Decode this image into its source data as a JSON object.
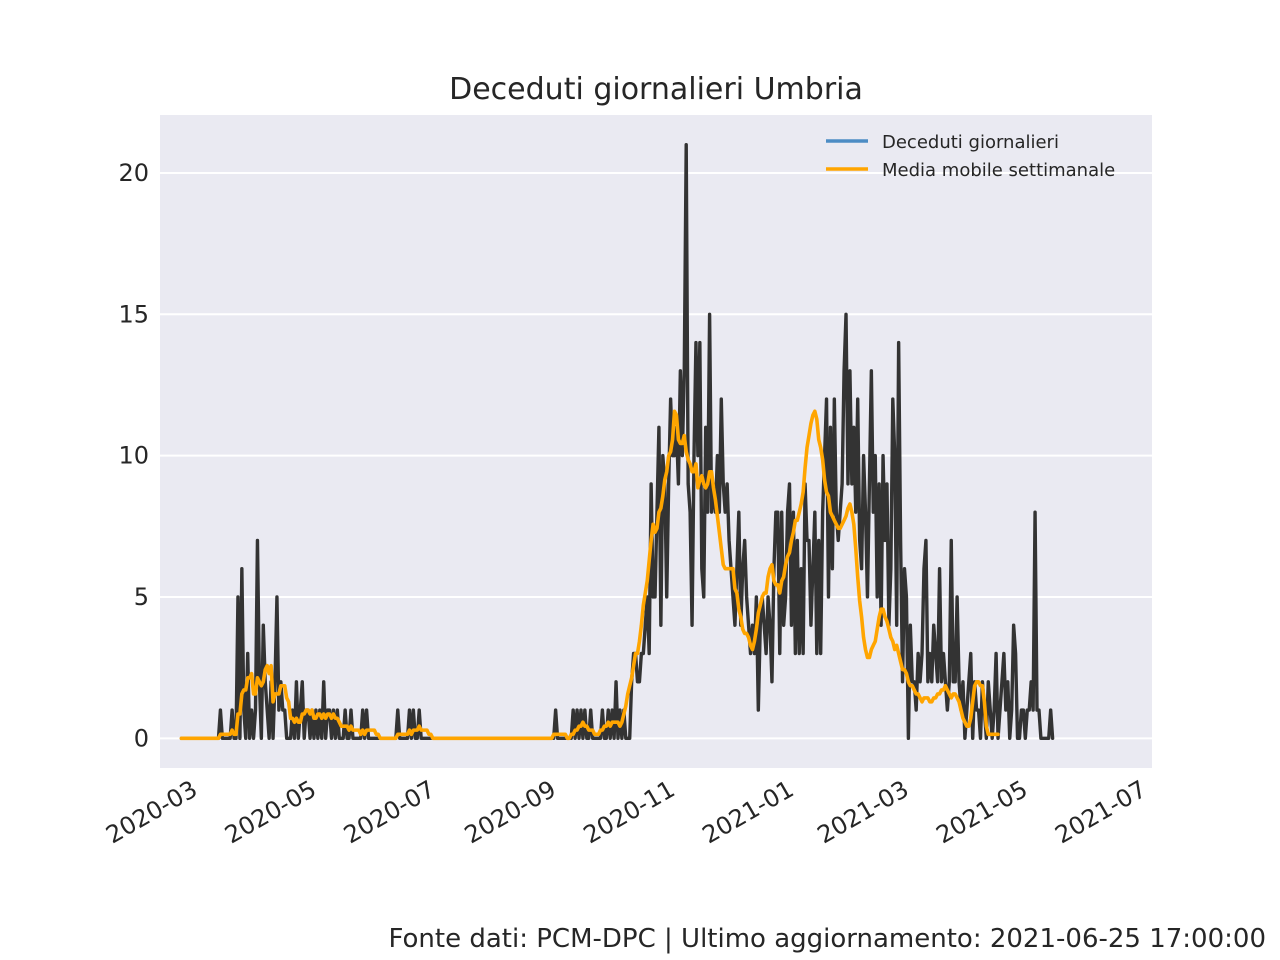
{
  "chart_data": {
    "type": "line",
    "title": "Deceduti giornalieri Umbria",
    "xlabel": "",
    "ylabel": "",
    "x_range": [
      "2020-02-24",
      "2021-06-25"
    ],
    "xlim": [
      "2020-02-13",
      "2021-07-06"
    ],
    "ylim": [
      -1.05,
      22.05
    ],
    "y_ticks": [
      0,
      5,
      10,
      15,
      20
    ],
    "x_ticks": [
      "2020-03",
      "2020-05",
      "2020-07",
      "2020-09",
      "2020-11",
      "2021-01",
      "2021-03",
      "2021-05",
      "2021-07"
    ],
    "grid": true,
    "legend_position": "top-right",
    "series": [
      {
        "name": "Deceduti giornalieri",
        "legend_color": "#4c8cc4",
        "line_color": "#333333",
        "values": [
          0,
          0,
          0,
          0,
          0,
          0,
          0,
          0,
          0,
          0,
          0,
          0,
          0,
          0,
          0,
          0,
          0,
          0,
          0,
          0,
          1,
          0,
          0,
          0,
          0,
          0,
          1,
          0,
          0,
          5,
          0,
          6,
          1,
          0,
          3,
          0,
          1,
          0,
          1,
          7,
          2,
          0,
          4,
          2,
          1,
          0,
          2,
          0,
          2,
          5,
          1,
          2,
          1,
          1,
          0,
          0,
          0,
          1,
          0,
          2,
          0,
          1,
          2,
          0,
          1,
          1,
          0,
          1,
          0,
          1,
          0,
          1,
          0,
          2,
          0,
          1,
          1,
          0,
          1,
          0,
          1,
          0,
          0,
          0,
          1,
          0,
          0,
          1,
          0,
          0,
          0,
          0,
          0,
          1,
          0,
          1,
          0,
          0,
          0,
          0,
          0,
          0,
          0,
          0,
          0,
          0,
          0,
          0,
          0,
          0,
          0,
          1,
          0,
          0,
          0,
          0,
          0,
          1,
          0,
          1,
          0,
          0,
          1,
          0,
          0,
          0,
          0,
          0,
          0,
          0,
          0,
          0,
          0,
          0,
          0,
          0,
          0,
          0,
          0,
          0,
          0,
          0,
          0,
          0,
          0,
          0,
          0,
          0,
          0,
          0,
          0,
          0,
          0,
          0,
          0,
          0,
          0,
          0,
          0,
          0,
          0,
          0,
          0,
          0,
          0,
          0,
          0,
          0,
          0,
          0,
          0,
          0,
          0,
          0,
          0,
          0,
          0,
          0,
          0,
          0,
          0,
          0,
          0,
          0,
          0,
          0,
          0,
          0,
          0,
          0,
          0,
          0,
          1,
          0,
          0,
          0,
          0,
          0,
          0,
          0,
          0,
          1,
          0,
          1,
          0,
          1,
          0,
          1,
          0,
          0,
          1,
          0,
          0,
          0,
          0,
          0,
          1,
          0,
          0,
          1,
          0,
          1,
          0,
          2,
          0,
          1,
          0,
          1,
          0,
          0,
          0,
          2,
          3,
          3,
          2,
          2,
          3,
          3,
          4,
          5,
          3,
          9,
          5,
          5,
          8,
          11,
          4,
          10,
          9,
          5,
          9,
          12,
          10,
          10,
          11,
          9,
          13,
          10,
          13,
          21,
          9,
          8,
          4,
          10,
          14,
          10,
          14,
          6,
          5,
          11,
          8,
          15,
          8,
          9,
          8,
          10,
          8,
          12,
          9,
          8,
          9,
          7,
          6,
          5,
          4,
          6,
          8,
          4,
          6,
          7,
          5,
          4,
          3,
          4,
          3,
          5,
          1,
          4,
          5,
          4,
          3,
          5,
          4,
          2,
          6,
          8,
          8,
          3,
          8,
          4,
          5,
          8,
          9,
          4,
          8,
          3,
          7,
          3,
          6,
          3,
          9,
          7,
          7,
          4,
          6,
          8,
          3,
          7,
          3,
          8,
          10,
          12,
          5,
          11,
          6,
          12,
          8,
          7,
          8,
          9,
          13,
          15,
          9,
          13,
          9,
          11,
          8,
          12,
          7,
          6,
          10,
          8,
          5,
          9,
          13,
          8,
          10,
          5,
          9,
          4,
          10,
          7,
          9,
          4,
          6,
          12,
          10,
          4,
          14,
          7,
          2,
          6,
          5,
          0,
          4,
          2,
          2,
          1,
          3,
          2,
          3,
          6,
          7,
          2,
          3,
          2,
          4,
          3,
          2,
          6,
          2,
          3,
          2,
          1,
          2,
          7,
          2,
          2,
          5,
          2,
          1,
          2,
          0,
          1,
          2,
          3,
          0,
          2,
          1,
          1,
          0,
          2,
          1,
          0,
          2,
          1,
          0,
          1,
          3,
          0,
          1,
          2,
          3,
          1,
          2,
          0,
          1,
          4,
          3,
          0,
          0,
          1,
          1,
          0,
          1,
          1,
          2,
          1,
          8,
          1,
          1,
          0,
          0,
          0,
          0,
          0,
          1,
          0
        ]
      },
      {
        "name": "Media mobile settimanale",
        "line_color": "#ffa500",
        "values": [
          0,
          0,
          0,
          0,
          0,
          0,
          0,
          0,
          0,
          0,
          0,
          0,
          0,
          0,
          0,
          0,
          0,
          0,
          0,
          0,
          0.14,
          0.14,
          0.14,
          0.14,
          0.14,
          0.14,
          0.29,
          0.14,
          0.14,
          0.86,
          0.86,
          1.57,
          1.71,
          1.71,
          2.14,
          2.14,
          2.29,
          1.57,
          1.57,
          2.14,
          2,
          1.86,
          2,
          2.43,
          2.57,
          2.29,
          2.57,
          1.29,
          1.57,
          1.57,
          1.57,
          1.86,
          1.86,
          1.86,
          1.43,
          1.29,
          0.71,
          0.71,
          0.57,
          0.71,
          0.57,
          0.57,
          0.86,
          0.86,
          1,
          1,
          0.86,
          1,
          0.71,
          0.71,
          0.86,
          0.86,
          0.71,
          0.86,
          0.71,
          0.86,
          0.86,
          0.71,
          0.86,
          0.71,
          0.71,
          0.57,
          0.43,
          0.43,
          0.43,
          0.43,
          0.29,
          0.43,
          0.29,
          0.29,
          0.29,
          0.29,
          0.14,
          0.29,
          0.14,
          0.29,
          0.29,
          0.29,
          0.29,
          0.29,
          0.14,
          0.14,
          0,
          0,
          0,
          0,
          0,
          0,
          0,
          0,
          0,
          0.14,
          0.14,
          0.14,
          0.14,
          0.14,
          0.14,
          0.29,
          0.14,
          0.29,
          0.29,
          0.29,
          0.43,
          0.29,
          0.29,
          0.29,
          0.29,
          0.14,
          0.14,
          0,
          0,
          0,
          0,
          0,
          0,
          0,
          0,
          0,
          0,
          0,
          0,
          0,
          0,
          0,
          0,
          0,
          0,
          0,
          0,
          0,
          0,
          0,
          0,
          0,
          0,
          0,
          0,
          0,
          0,
          0,
          0,
          0,
          0,
          0,
          0,
          0,
          0,
          0,
          0,
          0,
          0,
          0,
          0,
          0,
          0,
          0,
          0,
          0,
          0,
          0,
          0,
          0,
          0,
          0,
          0,
          0,
          0,
          0,
          0,
          0,
          0,
          0.14,
          0.14,
          0.14,
          0.14,
          0.14,
          0.14,
          0.14,
          0,
          0,
          0.14,
          0.14,
          0.29,
          0.29,
          0.43,
          0.43,
          0.57,
          0.43,
          0.43,
          0.29,
          0.29,
          0.29,
          0.14,
          0.14,
          0.14,
          0.29,
          0.29,
          0.43,
          0.43,
          0.57,
          0.43,
          0.57,
          0.57,
          0.57,
          0.57,
          0.43,
          0.57,
          0.86,
          1.14,
          1.57,
          1.86,
          2.14,
          2.57,
          3,
          3,
          3.43,
          4,
          4.71,
          5.14,
          5.57,
          6.29,
          7,
          7.57,
          7.29,
          7.43,
          8,
          8.14,
          8.57,
          9.14,
          9.43,
          10,
          10.14,
          10.57,
          11.57,
          11.43,
          10.57,
          10.43,
          10.43,
          10.71,
          10.14,
          9.86,
          9.71,
          9.43,
          9.43,
          9.71,
          8.86,
          9.14,
          9.29,
          9,
          8.86,
          9,
          9.43,
          9.43,
          8.86,
          8.43,
          7.86,
          7.29,
          6.71,
          6.14,
          6,
          6,
          6,
          6,
          6,
          5.29,
          5.14,
          4.57,
          4.29,
          3.86,
          3.71,
          3.71,
          3.57,
          3.29,
          3.14,
          3.43,
          3.86,
          4.43,
          4.71,
          5,
          5.14,
          5.14,
          5.71,
          6,
          6.14,
          5.57,
          5.43,
          5.43,
          5.14,
          5.57,
          5.71,
          6.14,
          6.43,
          6.57,
          7,
          7.29,
          7.71,
          7.71,
          8,
          8.29,
          8.71,
          9.57,
          10.29,
          10.71,
          11.14,
          11.43,
          11.57,
          11.29,
          10.57,
          10.29,
          9.86,
          9.14,
          8.71,
          8.57,
          8,
          7.86,
          7.71,
          7.57,
          7.43,
          7.43,
          7.57,
          7.71,
          7.86,
          8.14,
          8.29,
          8,
          7.57,
          6.71,
          5.71,
          4.86,
          4.29,
          3.57,
          3.14,
          2.86,
          2.86,
          3.14,
          3.29,
          3.43,
          3.86,
          4.29,
          4.57,
          4.57,
          4.29,
          4.14,
          3.86,
          3.57,
          3.43,
          3.14,
          3.29,
          3,
          2.71,
          2.43,
          2.43,
          2.29,
          2,
          1.86,
          1.86,
          1.71,
          1.57,
          1.57,
          1.43,
          1.29,
          1.43,
          1.43,
          1.43,
          1.29,
          1.29,
          1.43,
          1.43,
          1.57,
          1.57,
          1.71,
          1.71,
          1.86,
          1.71,
          1.57,
          1.43,
          1.57,
          1.57,
          1.43,
          1.29,
          1,
          0.71,
          0.57,
          0.43,
          0.43,
          0.71,
          1.29,
          1.86,
          2,
          2,
          1.86,
          1.86,
          1.29,
          0.43,
          0.14,
          0.14,
          0.14,
          0.14,
          0.14,
          0.14
        ]
      }
    ]
  },
  "footer": "Fonte dati: PCM-DPC | Ultimo aggiornamento: 2021-06-25 17:00:00"
}
